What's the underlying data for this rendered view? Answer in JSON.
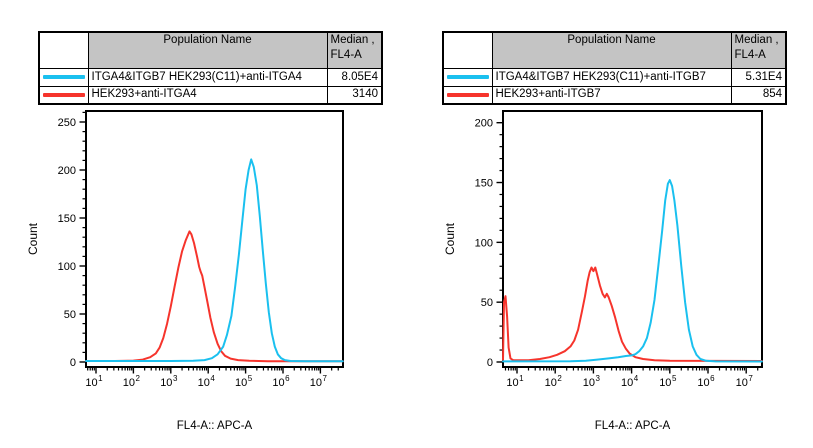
{
  "panels": [
    {
      "ylabel": "Count",
      "xlabel": "FL4-A:: APC-A",
      "table": {
        "headers": {
          "population": "Population Name",
          "median_line1": "Median ,",
          "median_line2": "FL4-A"
        },
        "rows": [
          {
            "color": "#1AC0EF",
            "name": "ITGA4&ITGB7 HEK293(C11)+anti-ITGA4",
            "median": "8.05E4"
          },
          {
            "color": "#F6342C",
            "name": "HEK293+anti-ITGA4",
            "median": "3140"
          }
        ]
      }
    },
    {
      "ylabel": "Count",
      "xlabel": "FL4-A:: APC-A",
      "table": {
        "headers": {
          "population": "Population Name",
          "median_line1": "Median ,",
          "median_line2": "FL4-A"
        },
        "rows": [
          {
            "color": "#1AC0EF",
            "name": "ITGA4&ITGB7 HEK293(C11)+anti-ITGB7",
            "median": "5.31E4"
          },
          {
            "color": "#F6342C",
            "name": "HEK293+anti-ITGB7",
            "median": "854"
          }
        ]
      }
    }
  ],
  "chart_data": [
    {
      "type": "line",
      "subtype": "flow-cytometry-histogram",
      "title": "",
      "xlabel": "FL4-A:: APC-A",
      "ylabel": "Count",
      "xscale": "log",
      "xlim_log10": [
        0.73,
        7.6
      ],
      "xticks_log10": [
        1,
        2,
        3,
        4,
        5,
        6,
        7
      ],
      "ylim": [
        0,
        261
      ],
      "yticks": [
        0,
        50,
        100,
        150,
        200,
        250
      ],
      "grid": false,
      "legend": "table-above",
      "series": [
        {
          "name": "ITGA4&ITGB7 HEK293(C11)+anti-ITGA4",
          "color": "#1AC0EF",
          "median_fl4a": "8.05E4",
          "peak": {
            "x_log10": 5.15,
            "count": 211
          },
          "points": [
            [
              0.73,
              1
            ],
            [
              2.0,
              1
            ],
            [
              3.0,
              1
            ],
            [
              3.6,
              1.2
            ],
            [
              3.9,
              2
            ],
            [
              4.1,
              4
            ],
            [
              4.25,
              8
            ],
            [
              4.4,
              16
            ],
            [
              4.5,
              28
            ],
            [
              4.62,
              48
            ],
            [
              4.72,
              78
            ],
            [
              4.82,
              112
            ],
            [
              4.92,
              150
            ],
            [
              5.0,
              180
            ],
            [
              5.08,
              200
            ],
            [
              5.15,
              211
            ],
            [
              5.22,
              203
            ],
            [
              5.3,
              184
            ],
            [
              5.38,
              152
            ],
            [
              5.46,
              116
            ],
            [
              5.54,
              82
            ],
            [
              5.62,
              52
            ],
            [
              5.7,
              30
            ],
            [
              5.78,
              16
            ],
            [
              5.86,
              8
            ],
            [
              5.95,
              4
            ],
            [
              6.05,
              2
            ],
            [
              6.2,
              1
            ],
            [
              6.6,
              0.8
            ],
            [
              7.6,
              0.8
            ]
          ]
        },
        {
          "name": "HEK293+anti-ITGA4",
          "color": "#F6342C",
          "median_fl4a": "3140",
          "peak": {
            "x_log10": 3.5,
            "count": 136
          },
          "points": [
            [
              0.73,
              1
            ],
            [
              1.5,
              1
            ],
            [
              2.0,
              1.5
            ],
            [
              2.25,
              2.5
            ],
            [
              2.45,
              5
            ],
            [
              2.6,
              9
            ],
            [
              2.7,
              15
            ],
            [
              2.8,
              25
            ],
            [
              2.9,
              40
            ],
            [
              3.0,
              58
            ],
            [
              3.1,
              78
            ],
            [
              3.2,
              98
            ],
            [
              3.3,
              115
            ],
            [
              3.4,
              127
            ],
            [
              3.5,
              136
            ],
            [
              3.55,
              133
            ],
            [
              3.62,
              124
            ],
            [
              3.7,
              110
            ],
            [
              3.76,
              99
            ],
            [
              3.8,
              94
            ],
            [
              3.84,
              90
            ],
            [
              3.9,
              78
            ],
            [
              3.98,
              62
            ],
            [
              4.06,
              46
            ],
            [
              4.15,
              31
            ],
            [
              4.25,
              19
            ],
            [
              4.35,
              11
            ],
            [
              4.45,
              6.5
            ],
            [
              4.6,
              3.5
            ],
            [
              4.8,
              2
            ],
            [
              5.1,
              1.2
            ],
            [
              5.6,
              0.8
            ],
            [
              7.6,
              0.8
            ]
          ]
        }
      ]
    },
    {
      "type": "line",
      "subtype": "flow-cytometry-histogram",
      "title": "",
      "xlabel": "FL4-A:: APC-A",
      "ylabel": "Count",
      "xscale": "log",
      "xlim_log10": [
        0.63,
        7.41
      ],
      "xticks_log10": [
        1,
        2,
        3,
        4,
        5,
        6,
        7
      ],
      "ylim": [
        0,
        208
      ],
      "yticks": [
        0,
        50,
        100,
        150,
        200
      ],
      "grid": false,
      "legend": "table-above",
      "series": [
        {
          "name": "ITGA4&ITGB7 HEK293(C11)+anti-ITGB7",
          "color": "#1AC0EF",
          "median_fl4a": "5.31E4",
          "peak": {
            "x_log10": 5.0,
            "count": 152
          },
          "points": [
            [
              0.63,
              0.5
            ],
            [
              2.4,
              0.6
            ],
            [
              2.8,
              1
            ],
            [
              3.1,
              2
            ],
            [
              3.4,
              3
            ],
            [
              3.65,
              4
            ],
            [
              3.85,
              5
            ],
            [
              4.0,
              5.5
            ],
            [
              4.1,
              6.5
            ],
            [
              4.2,
              9
            ],
            [
              4.3,
              13
            ],
            [
              4.4,
              20
            ],
            [
              4.5,
              33
            ],
            [
              4.6,
              52
            ],
            [
              4.7,
              80
            ],
            [
              4.8,
              110
            ],
            [
              4.88,
              135
            ],
            [
              4.95,
              149
            ],
            [
              5.0,
              152
            ],
            [
              5.06,
              147
            ],
            [
              5.12,
              135
            ],
            [
              5.2,
              114
            ],
            [
              5.3,
              80
            ],
            [
              5.4,
              50
            ],
            [
              5.5,
              27
            ],
            [
              5.6,
              13
            ],
            [
              5.7,
              6
            ],
            [
              5.8,
              2.5
            ],
            [
              5.95,
              1
            ],
            [
              6.2,
              0.5
            ],
            [
              7.41,
              0.4
            ]
          ]
        },
        {
          "name": "HEK293+anti-ITGB7",
          "color": "#F6342C",
          "median_fl4a": "854",
          "peak": {
            "x_log10": 2.95,
            "count": 79
          },
          "axis_spike": {
            "x_log10": 0.7,
            "count": 55
          },
          "points": [
            [
              0.63,
              2
            ],
            [
              0.66,
              50
            ],
            [
              0.7,
              55
            ],
            [
              0.74,
              38
            ],
            [
              0.78,
              12
            ],
            [
              0.83,
              3
            ],
            [
              0.9,
              1.5
            ],
            [
              1.3,
              1.5
            ],
            [
              1.6,
              2.5
            ],
            [
              1.85,
              4
            ],
            [
              2.05,
              6
            ],
            [
              2.25,
              9
            ],
            [
              2.4,
              13
            ],
            [
              2.5,
              18
            ],
            [
              2.6,
              27
            ],
            [
              2.7,
              42
            ],
            [
              2.78,
              55
            ],
            [
              2.85,
              68
            ],
            [
              2.9,
              75
            ],
            [
              2.95,
              79
            ],
            [
              3.0,
              76
            ],
            [
              3.05,
              79
            ],
            [
              3.1,
              73
            ],
            [
              3.17,
              64
            ],
            [
              3.24,
              57
            ],
            [
              3.3,
              54
            ],
            [
              3.35,
              57
            ],
            [
              3.4,
              54
            ],
            [
              3.48,
              47
            ],
            [
              3.57,
              37
            ],
            [
              3.66,
              26
            ],
            [
              3.75,
              17
            ],
            [
              3.85,
              11
            ],
            [
              3.95,
              7
            ],
            [
              4.1,
              4
            ],
            [
              4.3,
              2.5
            ],
            [
              4.6,
              1.5
            ],
            [
              5.0,
              1
            ],
            [
              7.41,
              0.8
            ]
          ]
        }
      ]
    }
  ]
}
